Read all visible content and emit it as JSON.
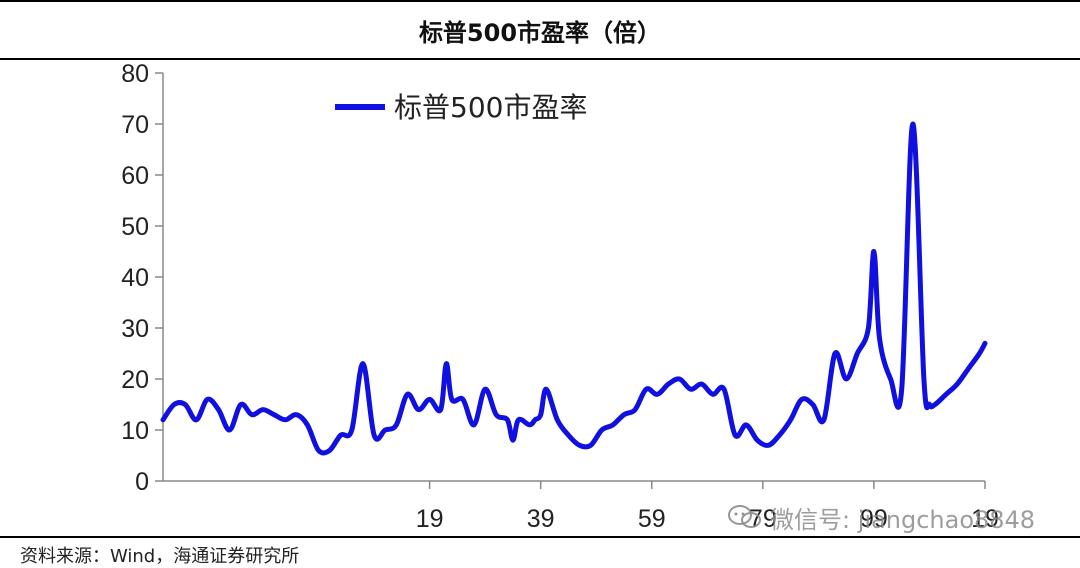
{
  "chart_data": {
    "type": "line",
    "title": "标普500市盈率（倍）",
    "xlabel": "",
    "ylabel": "",
    "ylim": [
      0,
      80
    ],
    "yticks": [
      0,
      10,
      20,
      30,
      40,
      50,
      60,
      70,
      80
    ],
    "xlim": [
      1871,
      2019
    ],
    "xticks": [
      1919,
      1939,
      1959,
      1979,
      1999,
      2019
    ],
    "xtick_labels": [
      "19",
      "39",
      "59",
      "79",
      "99",
      "19"
    ],
    "legend": "top-left",
    "grid": false,
    "series": [
      {
        "name": "标普500市盈率",
        "color": "#1010e0",
        "x": [
          1871,
          1873,
          1875,
          1877,
          1879,
          1881,
          1883,
          1885,
          1887,
          1889,
          1891,
          1893,
          1895,
          1897,
          1899,
          1901,
          1903,
          1905,
          1907,
          1909,
          1911,
          1913,
          1915,
          1917,
          1919,
          1921,
          1922,
          1923,
          1925,
          1927,
          1929,
          1931,
          1933,
          1934,
          1935,
          1937,
          1938,
          1939,
          1940,
          1942,
          1944,
          1946,
          1948,
          1950,
          1952,
          1954,
          1956,
          1958,
          1960,
          1962,
          1964,
          1966,
          1968,
          1970,
          1972,
          1974,
          1976,
          1978,
          1980,
          1982,
          1984,
          1986,
          1988,
          1990,
          1992,
          1994,
          1996,
          1998,
          1999,
          2000,
          2002,
          2004,
          2006,
          2008,
          2009,
          2010,
          2012,
          2014,
          2016,
          2018,
          2019
        ],
        "values": [
          12,
          15,
          15,
          12,
          16,
          14,
          10,
          15,
          13,
          14,
          13,
          12,
          13,
          11,
          6,
          6,
          9,
          10,
          23,
          9,
          10,
          11,
          17,
          14,
          16,
          14,
          23,
          16,
          16,
          11,
          18,
          13,
          12,
          8,
          12,
          11,
          12,
          13,
          18,
          12,
          9,
          7,
          7,
          10,
          11,
          13,
          14,
          18,
          17,
          19,
          20,
          18,
          19,
          17,
          18,
          9,
          11,
          8,
          7,
          9,
          12,
          16,
          15,
          12,
          25,
          20,
          25,
          30,
          45,
          28,
          20,
          18,
          70,
          20,
          15,
          15,
          17,
          19,
          22,
          25,
          27
        ]
      }
    ]
  },
  "source": {
    "text": "资料来源：Wind，海通证券研究所"
  },
  "watermark": {
    "text": "微信号: jiangchao8848"
  },
  "colors": {
    "line": "#1010e0",
    "axis": "#888888",
    "text": "#222222"
  }
}
